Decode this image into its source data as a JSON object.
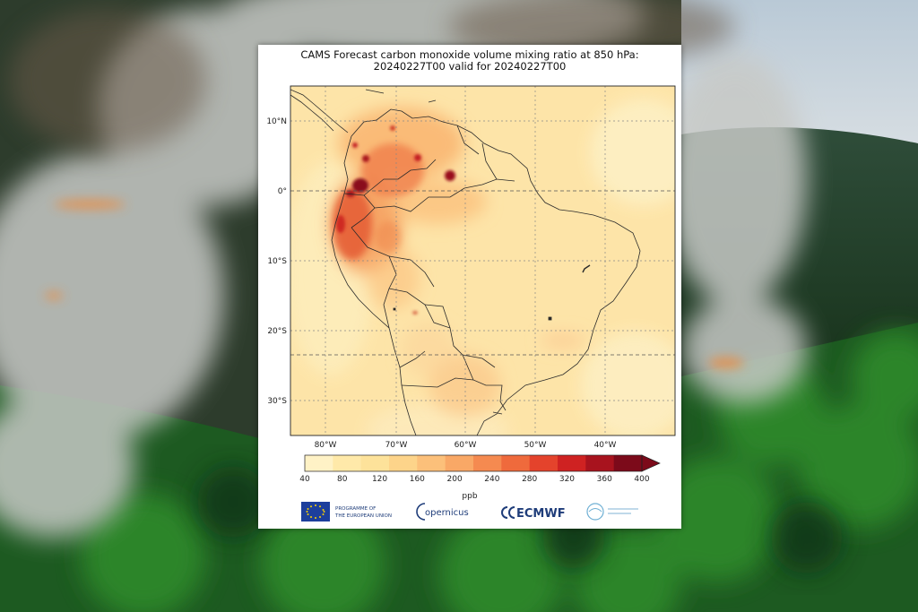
{
  "figure": {
    "title_line1": "CAMS Forecast carbon monoxide volume mixing ratio at 850 hPa:",
    "title_line2": "20240227T00 valid for 20240227T00"
  },
  "map": {
    "lat_labels": [
      "10°N",
      "0°",
      "10°S",
      "20°S",
      "30°S"
    ],
    "lon_labels": [
      "80°W",
      "70°W",
      "60°W",
      "50°W",
      "40°W"
    ],
    "colorbar_ticks": [
      "40",
      "80",
      "120",
      "160",
      "200",
      "240",
      "280",
      "320",
      "360",
      "400"
    ],
    "colorbar_unit": "ppb",
    "colorbar_colors": [
      "#fff2c6",
      "#ffe9a9",
      "#fde29a",
      "#fdd48a",
      "#fcc07a",
      "#f9a866",
      "#f58a50",
      "#ef6a3c",
      "#e4432c",
      "#cf2222",
      "#a8131e",
      "#7c0a1a"
    ]
  },
  "logos": {
    "eu_line1": "PROGRAMME OF",
    "eu_line2": "THE EUROPEAN UNION",
    "copernicus": "opernicus",
    "ecmwf": "ECMWF"
  },
  "colors": {
    "forest": "#1f5a22",
    "smoke": "#b9bcbc",
    "sky": "#c9d6e2"
  }
}
